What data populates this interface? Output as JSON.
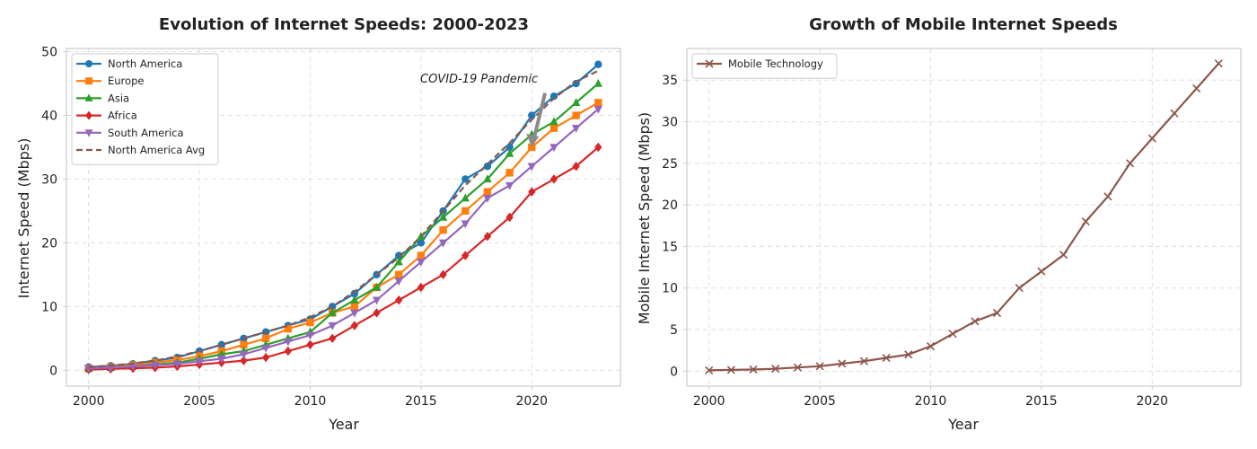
{
  "chart_data": [
    {
      "type": "line",
      "title": "Evolution of Internet Speeds: 2000-2023",
      "xlabel": "Year",
      "ylabel": "Internet Speed (Mbps)",
      "xlim": [
        1999,
        2024
      ],
      "ylim": [
        -2.5,
        50.5
      ],
      "x_ticks": [
        2000,
        2005,
        2010,
        2015,
        2020
      ],
      "y_ticks": [
        0,
        10,
        20,
        30,
        40,
        50
      ],
      "grid": true,
      "legend_position": "upper-left",
      "x": [
        2000,
        2001,
        2002,
        2003,
        2004,
        2005,
        2006,
        2007,
        2008,
        2009,
        2010,
        2011,
        2012,
        2013,
        2014,
        2015,
        2016,
        2017,
        2018,
        2019,
        2020,
        2021,
        2022,
        2023
      ],
      "series": [
        {
          "name": "North America",
          "color": "#1f77b4",
          "marker": "circle",
          "values": [
            0.5,
            0.7,
            1.0,
            1.5,
            2.0,
            3.0,
            4.0,
            5.0,
            6.0,
            7.0,
            8.0,
            10.0,
            12.0,
            15.0,
            18.0,
            20.0,
            25.0,
            30.0,
            32.0,
            35.0,
            40.0,
            43.0,
            45.0,
            48.0
          ]
        },
        {
          "name": "Europe",
          "color": "#ff7f0e",
          "marker": "square",
          "values": [
            0.3,
            0.5,
            0.8,
            1.2,
            1.6,
            2.2,
            3.0,
            4.0,
            5.0,
            6.5,
            7.5,
            9.0,
            10.0,
            13.0,
            15.0,
            18.0,
            22.0,
            25.0,
            28.0,
            31.0,
            35.0,
            38.0,
            40.0,
            42.0
          ]
        },
        {
          "name": "Asia",
          "color": "#2ca02c",
          "marker": "triangle-up",
          "values": [
            0.2,
            0.4,
            0.6,
            0.9,
            1.2,
            1.8,
            2.5,
            3.0,
            4.0,
            5.0,
            6.0,
            9.0,
            11.0,
            13.0,
            17.0,
            21.0,
            24.0,
            27.0,
            30.0,
            34.0,
            37.0,
            39.0,
            42.0,
            45.0
          ]
        },
        {
          "name": "Africa",
          "color": "#d62728",
          "marker": "diamond",
          "values": [
            0.1,
            0.2,
            0.3,
            0.4,
            0.6,
            0.9,
            1.2,
            1.5,
            2.0,
            3.0,
            4.0,
            5.0,
            7.0,
            9.0,
            11.0,
            13.0,
            15.0,
            18.0,
            21.0,
            24.0,
            28.0,
            30.0,
            32.0,
            35.0
          ]
        },
        {
          "name": "South America",
          "color": "#9467bd",
          "marker": "triangle-down",
          "values": [
            0.3,
            0.4,
            0.6,
            0.8,
            1.0,
            1.4,
            1.8,
            2.5,
            3.5,
            4.5,
            5.5,
            7.0,
            9.0,
            11.0,
            14.0,
            17.0,
            20.0,
            23.0,
            27.0,
            29.0,
            32.0,
            35.0,
            38.0,
            41.0
          ]
        },
        {
          "name": "North America Avg",
          "color": "#8c564b",
          "marker": "none",
          "dashed": true,
          "values": [
            0.5,
            0.73,
            1.07,
            1.5,
            2.17,
            3.0,
            4.0,
            5.0,
            6.0,
            7.0,
            8.33,
            10.0,
            12.33,
            15.0,
            17.67,
            21.0,
            25.0,
            29.0,
            32.33,
            35.67,
            39.33,
            42.67,
            45.33,
            47.0
          ]
        }
      ],
      "annotations": [
        {
          "text": "COVID-19 Pandemic",
          "text_x": 2015,
          "text_y": 45,
          "arrow_to_x": 2020,
          "arrow_to_y": 35
        }
      ]
    },
    {
      "type": "line",
      "title": "Growth of Mobile Internet Speeds",
      "xlabel": "Year",
      "ylabel": "Mobile Internet Speed (Mbps)",
      "xlim": [
        1999,
        2024
      ],
      "ylim": [
        -1.8,
        38.8
      ],
      "x_ticks": [
        2000,
        2005,
        2010,
        2015,
        2020
      ],
      "y_ticks": [
        0,
        5,
        10,
        15,
        20,
        25,
        30,
        35
      ],
      "grid": true,
      "legend_position": "upper-left",
      "x": [
        2000,
        2001,
        2002,
        2003,
        2004,
        2005,
        2006,
        2007,
        2008,
        2009,
        2010,
        2011,
        2012,
        2013,
        2014,
        2015,
        2016,
        2017,
        2018,
        2019,
        2020,
        2021,
        2022,
        2023
      ],
      "series": [
        {
          "name": "Mobile Technology",
          "color": "#8c564b",
          "marker": "x",
          "values": [
            0.1,
            0.15,
            0.2,
            0.3,
            0.45,
            0.6,
            0.9,
            1.2,
            1.6,
            2.0,
            3.0,
            4.5,
            6.0,
            7.0,
            10.0,
            12.0,
            14.0,
            18.0,
            21.0,
            25.0,
            28.0,
            31.0,
            34.0,
            37.0
          ]
        }
      ]
    }
  ]
}
